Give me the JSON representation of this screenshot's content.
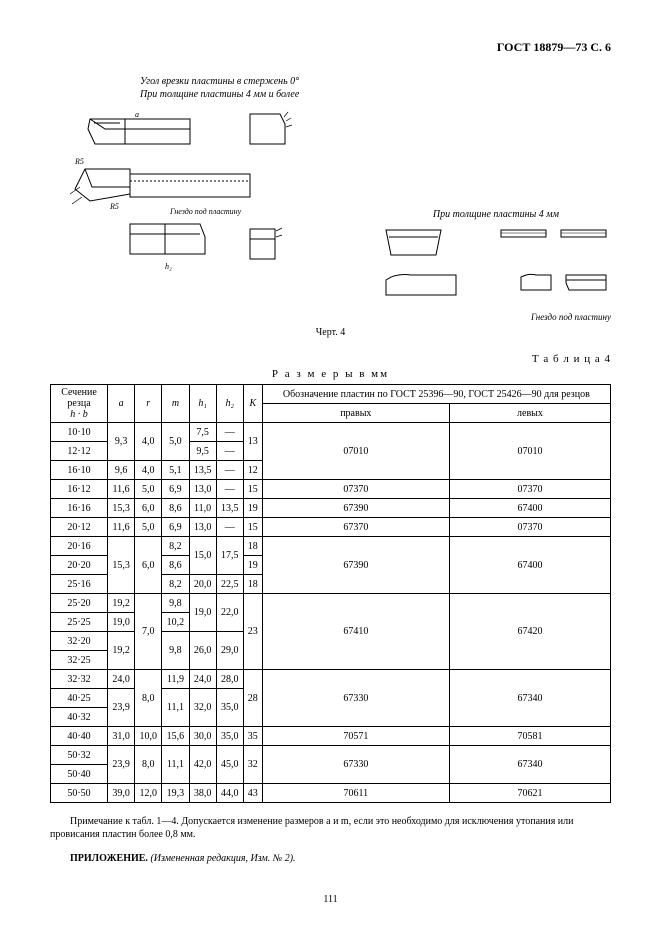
{
  "header": "ГОСТ 18879—73 С. 6",
  "diagram_top_caption_line1": "Угол врезки пластины в стержень 0°",
  "diagram_top_caption_line2": "При толщине пластины 4 мм и более",
  "diagram_left_socket_label": "Гнездо под пластину",
  "diagram_right_caption": "При толщине пластины 4 мм",
  "diagram_right_socket_label": "Гнездо под пластину",
  "figure_label": "Черт. 4",
  "table_label": "Т а б л и ц а  4",
  "table_caption": "Р а з м е р ы  в  мм",
  "columns": {
    "section": "Сечение резца",
    "section_sub": "h · b",
    "a": "a",
    "r": "r",
    "m": "m",
    "h1": "h₁",
    "h2": "h₂",
    "K": "K",
    "plates_header": "Обозначение пластин по ГОСТ 25396—90, ГОСТ 25426—90 для резцов",
    "right": "правых",
    "left": "левых"
  },
  "rows": [
    {
      "sec": "10·10",
      "a": "9,3",
      "r": "4,0",
      "m": "5,0",
      "h1": "7,5",
      "h2": "—",
      "K": "13",
      "pr": "07010",
      "pl": "07010",
      "a_span": 2,
      "r_span": 2,
      "m_span": 2,
      "K_span": 2,
      "pr_span": 3,
      "pl_span": 3
    },
    {
      "sec": "12·12",
      "h1": "9,5",
      "h2": "—"
    },
    {
      "sec": "16·10",
      "a": "9,6",
      "r": "4,0",
      "m": "5,1",
      "h1": "13,5",
      "h2": "—",
      "K": "12"
    },
    {
      "sec": "16·12",
      "a": "11,6",
      "r": "5,0",
      "m": "6,9",
      "h1": "13,0",
      "h2": "—",
      "K": "15",
      "pr": "07370",
      "pl": "07370"
    },
    {
      "sec": "16·16",
      "a": "15,3",
      "r": "6,0",
      "m": "8,6",
      "h1": "11,0",
      "h2": "13,5",
      "K": "19",
      "pr": "67390",
      "pl": "67400"
    },
    {
      "sec": "20·12",
      "a": "11,6",
      "r": "5,0",
      "m": "6,9",
      "h1": "13,0",
      "h2": "—",
      "K": "15",
      "pr": "67370",
      "pl": "07370"
    },
    {
      "sec": "20·16",
      "a": "15,3",
      "r": "6,0",
      "m": "8,2",
      "h1": "15,0",
      "h2": "17,5",
      "K": "18",
      "a_span": 3,
      "r_span": 3,
      "h1_span": 2,
      "h2_span": 2,
      "pr": "67390",
      "pl": "67400",
      "pr_span": 3,
      "pl_span": 3
    },
    {
      "sec": "20·20",
      "m": "8,6",
      "K": "19"
    },
    {
      "sec": "25·16",
      "m": "8,2",
      "h1": "20,0",
      "h2": "22,5",
      "K": "18"
    },
    {
      "sec": "25·20",
      "a": "19,2",
      "r": "7,0",
      "m": "9,8",
      "h1": "19,0",
      "h2": "22,0",
      "K": "23",
      "r_span": 4,
      "h1_span": 2,
      "h2_span": 2,
      "K_span": 4,
      "pr": "67410",
      "pl": "67420",
      "pr_span": 4,
      "pl_span": 4
    },
    {
      "sec": "25·25",
      "a": "19,0",
      "m": "10,2"
    },
    {
      "sec": "32·20",
      "a": "19,2",
      "m": "9,8",
      "h1": "26,0",
      "h2": "29,0",
      "a_span": 2,
      "m_span": 2,
      "h1_span": 2,
      "h2_span": 2
    },
    {
      "sec": "32·25"
    },
    {
      "sec": "32·32",
      "a": "24,0",
      "r": "8,0",
      "m": "11,9",
      "h1": "24,0",
      "h2": "28,0",
      "K": "28",
      "r_span": 3,
      "K_span": 3,
      "pr": "67330",
      "pl": "67340",
      "pr_span": 3,
      "pl_span": 3
    },
    {
      "sec": "40·25",
      "a": "23,9",
      "m": "11,1",
      "h1": "32,0",
      "h2": "35,0",
      "a_span": 2,
      "m_span": 2,
      "h1_span": 2,
      "h2_span": 2
    },
    {
      "sec": "40·32"
    },
    {
      "sec": "40·40",
      "a": "31,0",
      "r": "10,0",
      "m": "15,6",
      "h1": "30,0",
      "h2": "35,0",
      "K": "35",
      "pr": "70571",
      "pl": "70581"
    },
    {
      "sec": "50·32",
      "a": "23,9",
      "r": "8,0",
      "m": "11,1",
      "h1": "42,0",
      "h2": "45,0",
      "K": "32",
      "a_span": 2,
      "r_span": 2,
      "m_span": 2,
      "h1_span": 2,
      "h2_span": 2,
      "K_span": 2,
      "pr": "67330",
      "pl": "67340",
      "pr_span": 2,
      "pl_span": 2
    },
    {
      "sec": "50·40"
    },
    {
      "sec": "50·50",
      "a": "39,0",
      "r": "12,0",
      "m": "19,3",
      "h1": "38,0",
      "h2": "44,0",
      "K": "43",
      "pr": "70611",
      "pl": "70621"
    }
  ],
  "note": "Примечание к табл. 1—4. Допускается изменение размеров  a  и  m, если это необходимо для исключения утопания или провисания пластин более 0,8 мм.",
  "appendix_label": "ПРИЛОЖЕНИЕ.",
  "appendix_text": " (Измененная редакция, Изм. № 2).",
  "page_number": "111",
  "svg": {
    "stroke": "#000000",
    "fill": "#ffffff"
  }
}
